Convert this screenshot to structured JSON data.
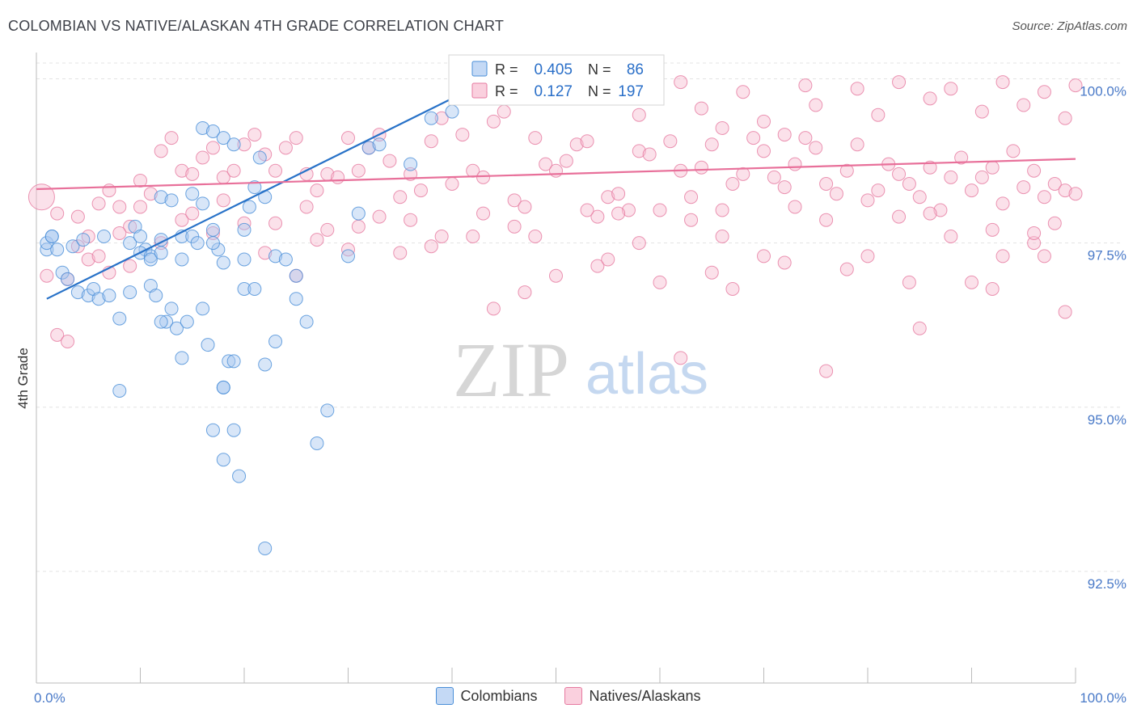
{
  "title": "COLOMBIAN VS NATIVE/ALASKAN 4TH GRADE CORRELATION CHART",
  "source": "Source: ZipAtlas.com",
  "watermark": {
    "zip": "ZIP",
    "atlas": "atlas"
  },
  "colors": {
    "blue": "#4a8fd8",
    "blue_fill": "#a9c8f0",
    "blue_line": "#2872c8",
    "pink": "#e67aa0",
    "pink_fill": "#f6bdd0",
    "pink_line": "#e8709a",
    "tick_label": "#4a7ac8",
    "grid": "#dddddd"
  },
  "stats_box": {
    "rows": [
      {
        "r_label": "R =",
        "r_value": "0.405",
        "n_label": "N =",
        "n_value": "86"
      },
      {
        "r_label": "R =",
        "r_value": "0.127",
        "n_label": "N =",
        "n_value": "197"
      }
    ]
  },
  "chart_data": {
    "type": "scatter",
    "title": "COLOMBIAN VS NATIVE/ALASKAN 4TH GRADE CORRELATION CHART",
    "xlabel": "",
    "ylabel": "4th Grade",
    "xlim": [
      0,
      100
    ],
    "ylim": [
      90.8,
      100.4
    ],
    "x_tick_labels": [
      "0.0%",
      "100.0%"
    ],
    "y_ticks": [
      92.5,
      95.0,
      97.5,
      100.0
    ],
    "y_tick_labels": [
      "92.5%",
      "95.0%",
      "97.5%",
      "100.0%"
    ],
    "grid": true,
    "legend_position": "bottom-center",
    "series": [
      {
        "name": "Colombians",
        "color": "#4a8fd8",
        "r": 0.405,
        "n": 86,
        "trend": [
          [
            1,
            96.65
          ],
          [
            40,
            99.7
          ]
        ],
        "points": [
          [
            1,
            97.4
          ],
          [
            1,
            97.5
          ],
          [
            1.5,
            97.6
          ],
          [
            2,
            97.4
          ],
          [
            1.5,
            97.6
          ],
          [
            2.5,
            97.05
          ],
          [
            3,
            96.95
          ],
          [
            3.5,
            97.45
          ],
          [
            4,
            96.75
          ],
          [
            4.5,
            97.55
          ],
          [
            5,
            96.7
          ],
          [
            5.5,
            96.8
          ],
          [
            6,
            96.65
          ],
          [
            6.5,
            97.6
          ],
          [
            7,
            96.7
          ],
          [
            8,
            96.35
          ],
          [
            9,
            97.5
          ],
          [
            9.5,
            97.75
          ],
          [
            10,
            97.6
          ],
          [
            10.5,
            97.4
          ],
          [
            11,
            96.85
          ],
          [
            11.5,
            96.7
          ],
          [
            12,
            97.55
          ],
          [
            12.5,
            96.3
          ],
          [
            13,
            96.5
          ],
          [
            13.5,
            96.2
          ],
          [
            14,
            97.6
          ],
          [
            14.5,
            96.3
          ],
          [
            15,
            97.6
          ],
          [
            15.5,
            97.5
          ],
          [
            16,
            96.5
          ],
          [
            16.5,
            95.95
          ],
          [
            17,
            97.7
          ],
          [
            17.5,
            97.4
          ],
          [
            18,
            97.2
          ],
          [
            18.5,
            95.7
          ],
          [
            19,
            94.65
          ],
          [
            19.5,
            93.95
          ],
          [
            20,
            97.7
          ],
          [
            20.5,
            98.05
          ],
          [
            21,
            98.35
          ],
          [
            21.5,
            98.8
          ],
          [
            22,
            98.2
          ],
          [
            23,
            97.3
          ],
          [
            24,
            97.25
          ],
          [
            9,
            96.75
          ],
          [
            12,
            98.2
          ],
          [
            13,
            98.15
          ],
          [
            15,
            98.25
          ],
          [
            16,
            98.1
          ],
          [
            17,
            97.5
          ],
          [
            18,
            95.3
          ],
          [
            18,
            95.3
          ],
          [
            19,
            95.7
          ],
          [
            20,
            97.25
          ],
          [
            14,
            95.75
          ],
          [
            20,
            96.8
          ],
          [
            21,
            96.8
          ],
          [
            8,
            95.25
          ],
          [
            12,
            96.3
          ],
          [
            14,
            97.25
          ],
          [
            10,
            97.35
          ],
          [
            11,
            97.3
          ],
          [
            17,
            94.65
          ],
          [
            18,
            94.2
          ],
          [
            22,
            95.65
          ],
          [
            23,
            96.0
          ],
          [
            25,
            96.65
          ],
          [
            26,
            96.3
          ],
          [
            27,
            94.45
          ],
          [
            28,
            94.95
          ],
          [
            22,
            92.85
          ],
          [
            11,
            97.25
          ],
          [
            12,
            97.35
          ],
          [
            16,
            99.25
          ],
          [
            17,
            99.2
          ],
          [
            18,
            99.1
          ],
          [
            19,
            99.0
          ],
          [
            25,
            97.0
          ],
          [
            30,
            97.3
          ],
          [
            31,
            97.95
          ],
          [
            32,
            98.95
          ],
          [
            33,
            99.0
          ],
          [
            36,
            98.7
          ],
          [
            38,
            99.4
          ],
          [
            40,
            99.5
          ]
        ]
      },
      {
        "name": "Natives/Alaskans",
        "color": "#e67aa0",
        "r": 0.127,
        "n": 197,
        "trend": [
          [
            0,
            98.32
          ],
          [
            100,
            98.78
          ]
        ],
        "points": [
          [
            0.5,
            98.2
          ],
          [
            1,
            97.0
          ],
          [
            2,
            96.1
          ],
          [
            3,
            96.0
          ],
          [
            4,
            97.9
          ],
          [
            5,
            97.6
          ],
          [
            6,
            98.1
          ],
          [
            7,
            98.3
          ],
          [
            8,
            98.05
          ],
          [
            9,
            97.75
          ],
          [
            10,
            98.45
          ],
          [
            11,
            98.25
          ],
          [
            12,
            98.9
          ],
          [
            13,
            99.1
          ],
          [
            14,
            98.6
          ],
          [
            15,
            98.55
          ],
          [
            16,
            98.8
          ],
          [
            17,
            98.95
          ],
          [
            18,
            98.5
          ],
          [
            19,
            98.6
          ],
          [
            20,
            99.0
          ],
          [
            21,
            99.15
          ],
          [
            22,
            98.85
          ],
          [
            23,
            98.6
          ],
          [
            24,
            98.95
          ],
          [
            25,
            99.1
          ],
          [
            26,
            98.55
          ],
          [
            27,
            98.3
          ],
          [
            28,
            98.55
          ],
          [
            29,
            98.5
          ],
          [
            30,
            99.1
          ],
          [
            31,
            98.6
          ],
          [
            32,
            98.95
          ],
          [
            33,
            99.15
          ],
          [
            34,
            98.75
          ],
          [
            35,
            98.2
          ],
          [
            36,
            98.55
          ],
          [
            37,
            98.3
          ],
          [
            38,
            99.05
          ],
          [
            39,
            99.4
          ],
          [
            40,
            98.4
          ],
          [
            41,
            99.15
          ],
          [
            42,
            98.6
          ],
          [
            43,
            98.5
          ],
          [
            44,
            99.35
          ],
          [
            45,
            99.5
          ],
          [
            46,
            98.15
          ],
          [
            47,
            98.05
          ],
          [
            48,
            99.1
          ],
          [
            49,
            98.7
          ],
          [
            50,
            98.6
          ],
          [
            51,
            98.75
          ],
          [
            52,
            99.0
          ],
          [
            53,
            99.05
          ],
          [
            54,
            97.9
          ],
          [
            55,
            98.2
          ],
          [
            56,
            98.25
          ],
          [
            57,
            98.0
          ],
          [
            58,
            98.9
          ],
          [
            59,
            98.85
          ],
          [
            60,
            98.0
          ],
          [
            61,
            99.05
          ],
          [
            62,
            98.6
          ],
          [
            63,
            98.2
          ],
          [
            64,
            98.65
          ],
          [
            65,
            99.0
          ],
          [
            66,
            98.0
          ],
          [
            67,
            98.4
          ],
          [
            68,
            98.55
          ],
          [
            69,
            99.1
          ],
          [
            70,
            98.9
          ],
          [
            71,
            98.5
          ],
          [
            72,
            98.35
          ],
          [
            73,
            98.7
          ],
          [
            74,
            99.1
          ],
          [
            75,
            98.95
          ],
          [
            76,
            98.4
          ],
          [
            77,
            98.25
          ],
          [
            78,
            98.6
          ],
          [
            79,
            99.0
          ],
          [
            80,
            98.15
          ],
          [
            81,
            98.3
          ],
          [
            82,
            98.7
          ],
          [
            83,
            98.55
          ],
          [
            84,
            98.4
          ],
          [
            85,
            98.2
          ],
          [
            86,
            98.65
          ],
          [
            87,
            98.0
          ],
          [
            88,
            98.5
          ],
          [
            89,
            98.8
          ],
          [
            90,
            98.3
          ],
          [
            91,
            98.5
          ],
          [
            92,
            98.65
          ],
          [
            93,
            98.1
          ],
          [
            94,
            98.9
          ],
          [
            95,
            98.35
          ],
          [
            96,
            98.6
          ],
          [
            97,
            98.2
          ],
          [
            98,
            98.4
          ],
          [
            99,
            98.3
          ],
          [
            31,
            97.75
          ],
          [
            35,
            97.35
          ],
          [
            39,
            97.6
          ],
          [
            44,
            96.5
          ],
          [
            47,
            96.75
          ],
          [
            50,
            97.0
          ],
          [
            54,
            97.15
          ],
          [
            58,
            97.5
          ],
          [
            62,
            95.75
          ],
          [
            67,
            96.8
          ],
          [
            72,
            97.2
          ],
          [
            76,
            95.55
          ],
          [
            80,
            97.3
          ],
          [
            84,
            96.9
          ],
          [
            88,
            97.6
          ],
          [
            92,
            96.8
          ],
          [
            96,
            97.5
          ],
          [
            97,
            97.3
          ],
          [
            99,
            96.45
          ],
          [
            93,
            97.3
          ],
          [
            90,
            96.9
          ],
          [
            85,
            96.2
          ],
          [
            78,
            97.1
          ],
          [
            70,
            97.3
          ],
          [
            65,
            97.05
          ],
          [
            60,
            96.9
          ],
          [
            55,
            97.25
          ],
          [
            48,
            97.6
          ],
          [
            42,
            97.6
          ],
          [
            38,
            97.45
          ],
          [
            30,
            97.4
          ],
          [
            27,
            97.55
          ],
          [
            25,
            97.0
          ],
          [
            22,
            97.35
          ],
          [
            20,
            97.8
          ],
          [
            17,
            97.65
          ],
          [
            14,
            97.85
          ],
          [
            12,
            97.5
          ],
          [
            9,
            97.15
          ],
          [
            7,
            97.05
          ],
          [
            5,
            97.25
          ],
          [
            3,
            96.95
          ],
          [
            8,
            97.65
          ],
          [
            15,
            97.95
          ],
          [
            23,
            97.8
          ],
          [
            28,
            97.7
          ],
          [
            33,
            97.9
          ],
          [
            43,
            97.95
          ],
          [
            53,
            98.0
          ],
          [
            63,
            97.85
          ],
          [
            73,
            98.05
          ],
          [
            83,
            97.9
          ],
          [
            92,
            97.7
          ],
          [
            98,
            97.8
          ],
          [
            2,
            97.95
          ],
          [
            4,
            97.45
          ],
          [
            6,
            97.3
          ],
          [
            10,
            98.05
          ],
          [
            18,
            98.15
          ],
          [
            26,
            98.05
          ],
          [
            36,
            97.85
          ],
          [
            46,
            97.75
          ],
          [
            56,
            97.95
          ],
          [
            66,
            97.6
          ],
          [
            76,
            97.85
          ],
          [
            86,
            97.95
          ],
          [
            96,
            97.65
          ],
          [
            100,
            98.25
          ],
          [
            57,
            99.9
          ],
          [
            62,
            99.95
          ],
          [
            68,
            99.8
          ],
          [
            74,
            99.9
          ],
          [
            79,
            99.85
          ],
          [
            83,
            99.95
          ],
          [
            88,
            99.85
          ],
          [
            93,
            99.95
          ],
          [
            97,
            99.8
          ],
          [
            100,
            99.9
          ],
          [
            58,
            99.45
          ],
          [
            64,
            99.55
          ],
          [
            70,
            99.35
          ],
          [
            75,
            99.6
          ],
          [
            81,
            99.45
          ],
          [
            86,
            99.7
          ],
          [
            91,
            99.5
          ],
          [
            95,
            99.6
          ],
          [
            99,
            99.4
          ],
          [
            66,
            99.25
          ],
          [
            72,
            99.15
          ]
        ]
      }
    ]
  },
  "legend": {
    "items": [
      {
        "label": "Colombians"
      },
      {
        "label": "Natives/Alaskans"
      }
    ]
  }
}
